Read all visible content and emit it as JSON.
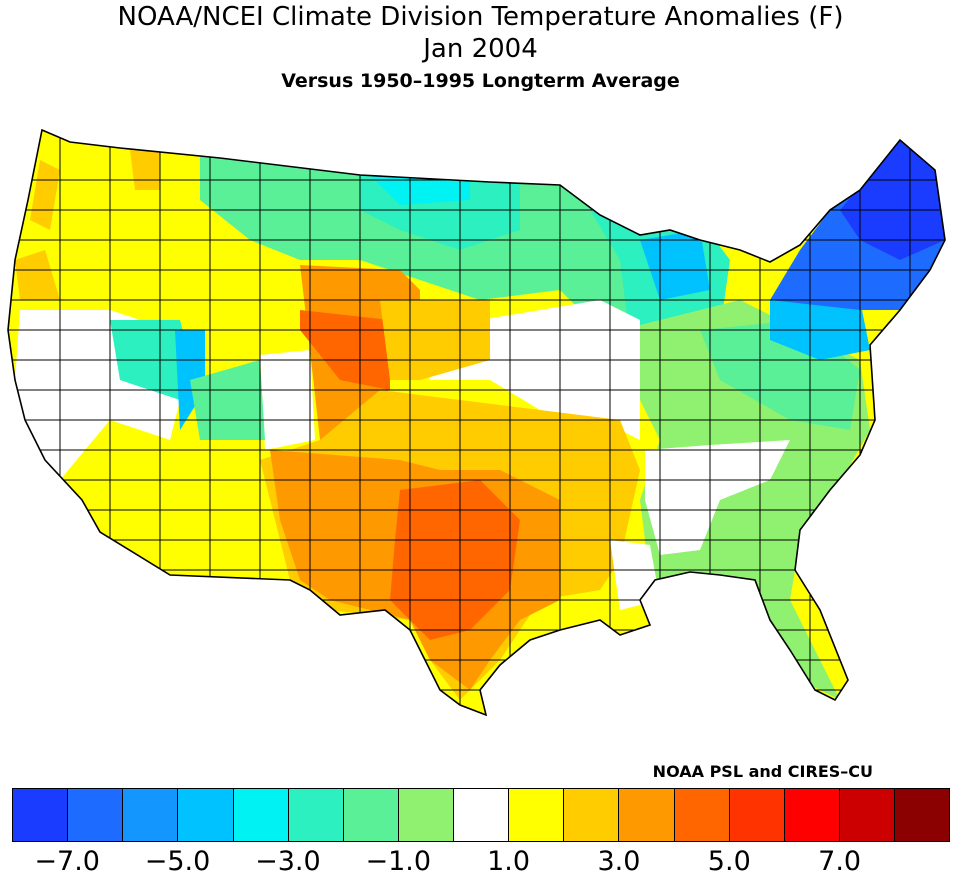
{
  "title": {
    "line1": "NOAA/NCEI Climate Division Temperature Anomalies (F)",
    "line2": "Jan 2004",
    "line3": "Versus 1950–1995 Longterm Average"
  },
  "credit": "NOAA PSL and CIRES–CU",
  "legend": {
    "colors": [
      "#1a3cff",
      "#1e6cff",
      "#1496ff",
      "#00c2ff",
      "#00f2f2",
      "#2cf0c0",
      "#5af098",
      "#90f070",
      "#ffffff",
      "#ffff00",
      "#ffcc00",
      "#ff9900",
      "#ff6600",
      "#ff3300",
      "#ff0000",
      "#cc0000",
      "#8b0000"
    ],
    "ticks": [
      "−7.0",
      "−5.0",
      "−3.0",
      "−1.0",
      "1.0",
      "3.0",
      "5.0",
      "7.0"
    ]
  },
  "colors": {
    "border": "#000000",
    "background": "#ffffff"
  }
}
